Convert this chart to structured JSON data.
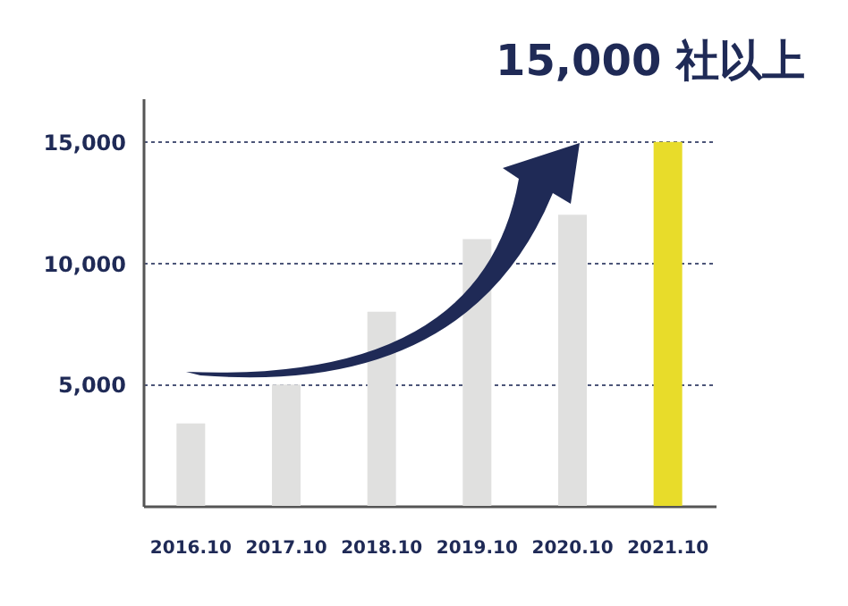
{
  "chart_data": {
    "type": "bar",
    "title": "15,000 社以上",
    "categories": [
      "2016.10",
      "2017.10",
      "2018.10",
      "2019.10",
      "2020.10",
      "2021.10"
    ],
    "values": [
      3400,
      5000,
      8000,
      11000,
      12000,
      15000
    ],
    "colors": [
      "#e0e0df",
      "#e0e0df",
      "#e0e0df",
      "#e0e0df",
      "#e0e0df",
      "#e8dc2a"
    ],
    "ylim": [
      0,
      16800
    ],
    "yticks": [
      {
        "value": 5000,
        "label": "5,000"
      },
      {
        "value": 10000,
        "label": "10,000"
      },
      {
        "value": 15000,
        "label": "15,000"
      }
    ],
    "grid": "y"
  }
}
